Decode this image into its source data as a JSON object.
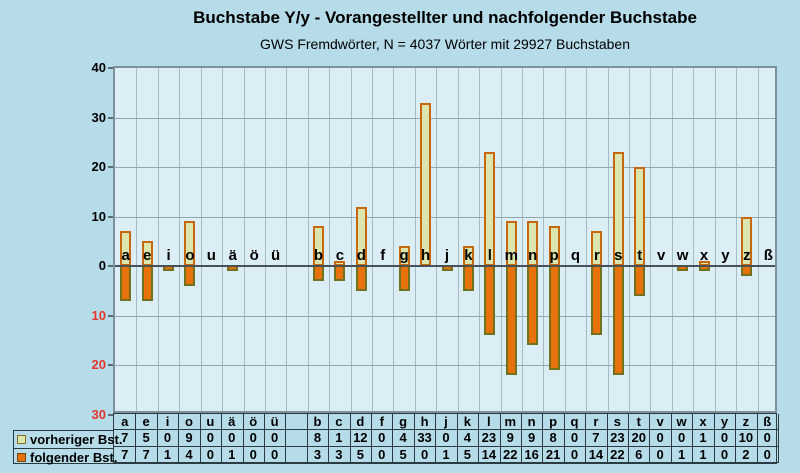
{
  "title": "Buchstabe Y/y - Vorangestellter und nachfolgender Buchstabe",
  "subtitle": "GWS Fremdwörter,  N = 4037 Wörter mit 29927 Buchstaben",
  "legend": [
    {
      "label": "vorheriger Bst.",
      "color": "#dbe5ae",
      "border": "#8a6d1c"
    },
    {
      "label": "folgender Bst.",
      "color": "#e7720c",
      "border": "#6e4a14"
    }
  ],
  "chart_data": {
    "type": "bar",
    "subtype": "diverging-vertical",
    "title": "Buchstabe Y/y - Vorangestellter und nachfolgender Buchstabe",
    "subtitle": "GWS Fremdwörter,  N = 4037 Wörter mit 29927 Buchstaben",
    "categories": [
      "a",
      "e",
      "i",
      "o",
      "u",
      "ä",
      "ö",
      "ü",
      "",
      "b",
      "c",
      "d",
      "f",
      "g",
      "h",
      "j",
      "k",
      "l",
      "m",
      "n",
      "p",
      "q",
      "r",
      "s",
      "t",
      "v",
      "w",
      "x",
      "y",
      "z",
      "ß"
    ],
    "series": [
      {
        "name": "vorheriger Bst.",
        "direction": "up",
        "values": [
          7,
          5,
          0,
          9,
          0,
          0,
          0,
          0,
          null,
          8,
          1,
          12,
          0,
          4,
          33,
          0,
          4,
          23,
          9,
          9,
          8,
          0,
          7,
          23,
          20,
          0,
          0,
          1,
          0,
          10,
          0
        ]
      },
      {
        "name": "folgender Bst.",
        "direction": "down",
        "values": [
          7,
          7,
          1,
          4,
          0,
          1,
          0,
          0,
          null,
          3,
          3,
          5,
          0,
          5,
          0,
          1,
          5,
          14,
          22,
          16,
          21,
          0,
          14,
          22,
          6,
          0,
          1,
          1,
          0,
          2,
          0
        ]
      }
    ],
    "y_axis": {
      "ticks": [
        {
          "label": "40",
          "value": 40
        },
        {
          "label": "30",
          "value": 30
        },
        {
          "label": "20",
          "value": 20
        },
        {
          "label": "10",
          "value": 10
        },
        {
          "label": "0",
          "value": 0
        },
        {
          "label": "10",
          "value": -10
        },
        {
          "label": "20",
          "value": -20
        },
        {
          "label": "30",
          "value": -30
        }
      ],
      "ylim": [
        -30,
        40
      ],
      "grid": true,
      "legend_position": "bottom-left"
    }
  },
  "colors": {
    "page_bg": "#b5dce8",
    "plot_bg": "#dceef5",
    "gridline": "#a7bbc5",
    "zero_line": "#45525a",
    "bar_up_fill": "#dbe5ae",
    "bar_up_border": "#c8680e",
    "bar_down_fill": "#e7720c",
    "bar_down_border": "#72721e",
    "axis_label_color": "#000000",
    "axis_label_negative_color": "#e6352a",
    "table_border": "#2a3b42"
  }
}
